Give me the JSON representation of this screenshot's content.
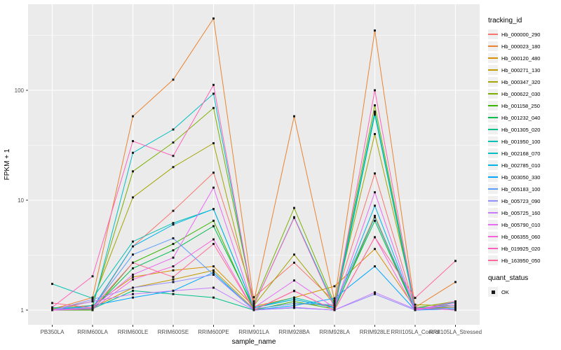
{
  "figure": {
    "y_axis": {
      "title": "FPKM + 1",
      "tick_labels": [
        "1",
        "10",
        "100"
      ]
    },
    "x_axis": {
      "title": "sample_name"
    },
    "legend": {
      "tracking_title": "tracking_id",
      "quant_title": "quant_status",
      "quant_label": "OK"
    }
  },
  "chart_data": {
    "type": "line",
    "title": "",
    "xlabel": "sample_name",
    "ylabel": "FPKM + 1",
    "y_scale": "log10",
    "ylim": [
      1,
      500
    ],
    "y_major_ticks": [
      1,
      10,
      100
    ],
    "y_minor_ticks": [
      3.16,
      31.6,
      316.2
    ],
    "grid": true,
    "legend_position": "right",
    "panel_bg": "#ebebeb",
    "grid_color": "#ffffff",
    "tick_color": "#333333",
    "tick_label_color": "#4d4d4d",
    "point_shape": "square",
    "point_color": "#1a1a1a",
    "quant_status": "OK",
    "categories": [
      "PB350LA",
      "RRIM600LA",
      "RRIM600LE",
      "RRIM600SE",
      "RRIM600PE",
      "RRIM901LA",
      "RRIM928BA",
      "RRIM928LA",
      "RRIM928LE",
      "RRII105LA_Control",
      "RRII105LA_Stressed"
    ],
    "series": [
      {
        "name": "Hb_000000_290",
        "color": "#F8766D",
        "values": [
          1.05,
          1.02,
          3.8,
          8.0,
          17.8,
          1.31,
          2.7,
          1.2,
          17.5,
          1.03,
          1.1
        ]
      },
      {
        "name": "Hb_000023_180",
        "color": "#EA8331",
        "values": [
          1.02,
          1.3,
          58,
          125,
          450,
          1.2,
          58,
          1.22,
          350,
          1.06,
          1.8
        ]
      },
      {
        "name": "Hb_000120_480",
        "color": "#D89000",
        "values": [
          1.0,
          1.1,
          2.0,
          2.3,
          2.5,
          1.08,
          1.3,
          1.65,
          3.6,
          1.04,
          1.06
        ]
      },
      {
        "name": "Hb_000271_130",
        "color": "#C09B00",
        "values": [
          1.0,
          1.05,
          1.6,
          1.9,
          2.3,
          1.02,
          1.15,
          1.1,
          7.2,
          1.02,
          1.05
        ]
      },
      {
        "name": "Hb_000347_320",
        "color": "#A3A500",
        "values": [
          1.02,
          1.2,
          10.6,
          20,
          33,
          1.1,
          3.2,
          1.12,
          40,
          1.12,
          1.09
        ]
      },
      {
        "name": "Hb_000622_030",
        "color": "#7CAE00",
        "values": [
          1.05,
          1.1,
          18.3,
          33.5,
          69,
          1.15,
          8.5,
          1.15,
          73,
          1.05,
          1.2
        ]
      },
      {
        "name": "Hb_001158_250",
        "color": "#39B600",
        "values": [
          1.0,
          1.0,
          2.7,
          4.0,
          6.5,
          1.0,
          1.2,
          1.02,
          7.0,
          1.0,
          1.1
        ]
      },
      {
        "name": "Hb_001232_040",
        "color": "#00BB4E",
        "values": [
          1.0,
          1.02,
          2.4,
          3.5,
          5.8,
          1.05,
          1.25,
          1.05,
          6.5,
          1.0,
          1.05
        ]
      },
      {
        "name": "Hb_001305_020",
        "color": "#00C087",
        "values": [
          1.0,
          1.03,
          1.5,
          1.4,
          1.3,
          1.0,
          1.05,
          1.0,
          60,
          1.0,
          1.18
        ]
      },
      {
        "name": "Hb_001950_100",
        "color": "#00C0B2",
        "values": [
          1.73,
          1.28,
          4.2,
          6.2,
          8.3,
          1.05,
          1.3,
          1.06,
          62,
          1.02,
          1.05
        ]
      },
      {
        "name": "Hb_002168_070",
        "color": "#00BFC4",
        "values": [
          1.05,
          1.05,
          27,
          44,
          93,
          1.1,
          7.0,
          1.1,
          64,
          1.05,
          1.1
        ]
      },
      {
        "name": "Hb_002785_010",
        "color": "#00B4E8",
        "values": [
          1.0,
          1.05,
          3.8,
          6.0,
          8.3,
          1.05,
          1.25,
          1.05,
          8.9,
          1.0,
          1.05
        ]
      },
      {
        "name": "Hb_003050_330",
        "color": "#00A6FF",
        "values": [
          1.0,
          1.1,
          1.3,
          1.5,
          2.2,
          1.0,
          1.1,
          1.28,
          2.5,
          1.0,
          1.02
        ]
      },
      {
        "name": "Hb_005183_100",
        "color": "#5A9DFF",
        "values": [
          1.0,
          1.05,
          3.2,
          4.5,
          2.1,
          1.02,
          1.15,
          1.12,
          7.0,
          1.05,
          1.0
        ]
      },
      {
        "name": "Hb_005723_090",
        "color": "#9490FF",
        "values": [
          1.0,
          1.25,
          1.6,
          1.8,
          2.1,
          1.0,
          1.05,
          1.0,
          1.4,
          1.0,
          1.05
        ]
      },
      {
        "name": "Hb_005725_160",
        "color": "#C77CFF",
        "values": [
          1.0,
          1.2,
          1.4,
          1.5,
          1.6,
          1.0,
          1.06,
          1.0,
          1.45,
          1.02,
          1.1
        ]
      },
      {
        "name": "Hb_005790_010",
        "color": "#E76BF3",
        "values": [
          1.0,
          1.05,
          2.1,
          3.0,
          13,
          1.05,
          1.86,
          1.05,
          11.8,
          1.0,
          1.15
        ]
      },
      {
        "name": "Hb_006355_060",
        "color": "#FA62DB",
        "values": [
          1.0,
          1.02,
          1.9,
          2.5,
          4.4,
          1.0,
          1.5,
          1.0,
          4.6,
          1.0,
          1.2
        ]
      },
      {
        "name": "Hb_019925_020",
        "color": "#FF62BC",
        "values": [
          1.06,
          2.03,
          34.5,
          25.3,
          112,
          1.1,
          6.9,
          1.05,
          100,
          1.05,
          1.0
        ]
      },
      {
        "name": "Hb_163950_050",
        "color": "#FF6A98",
        "values": [
          1.16,
          1.05,
          2.7,
          2.0,
          4.0,
          1.0,
          1.49,
          1.0,
          4.6,
          1.29,
          2.8
        ]
      }
    ]
  }
}
